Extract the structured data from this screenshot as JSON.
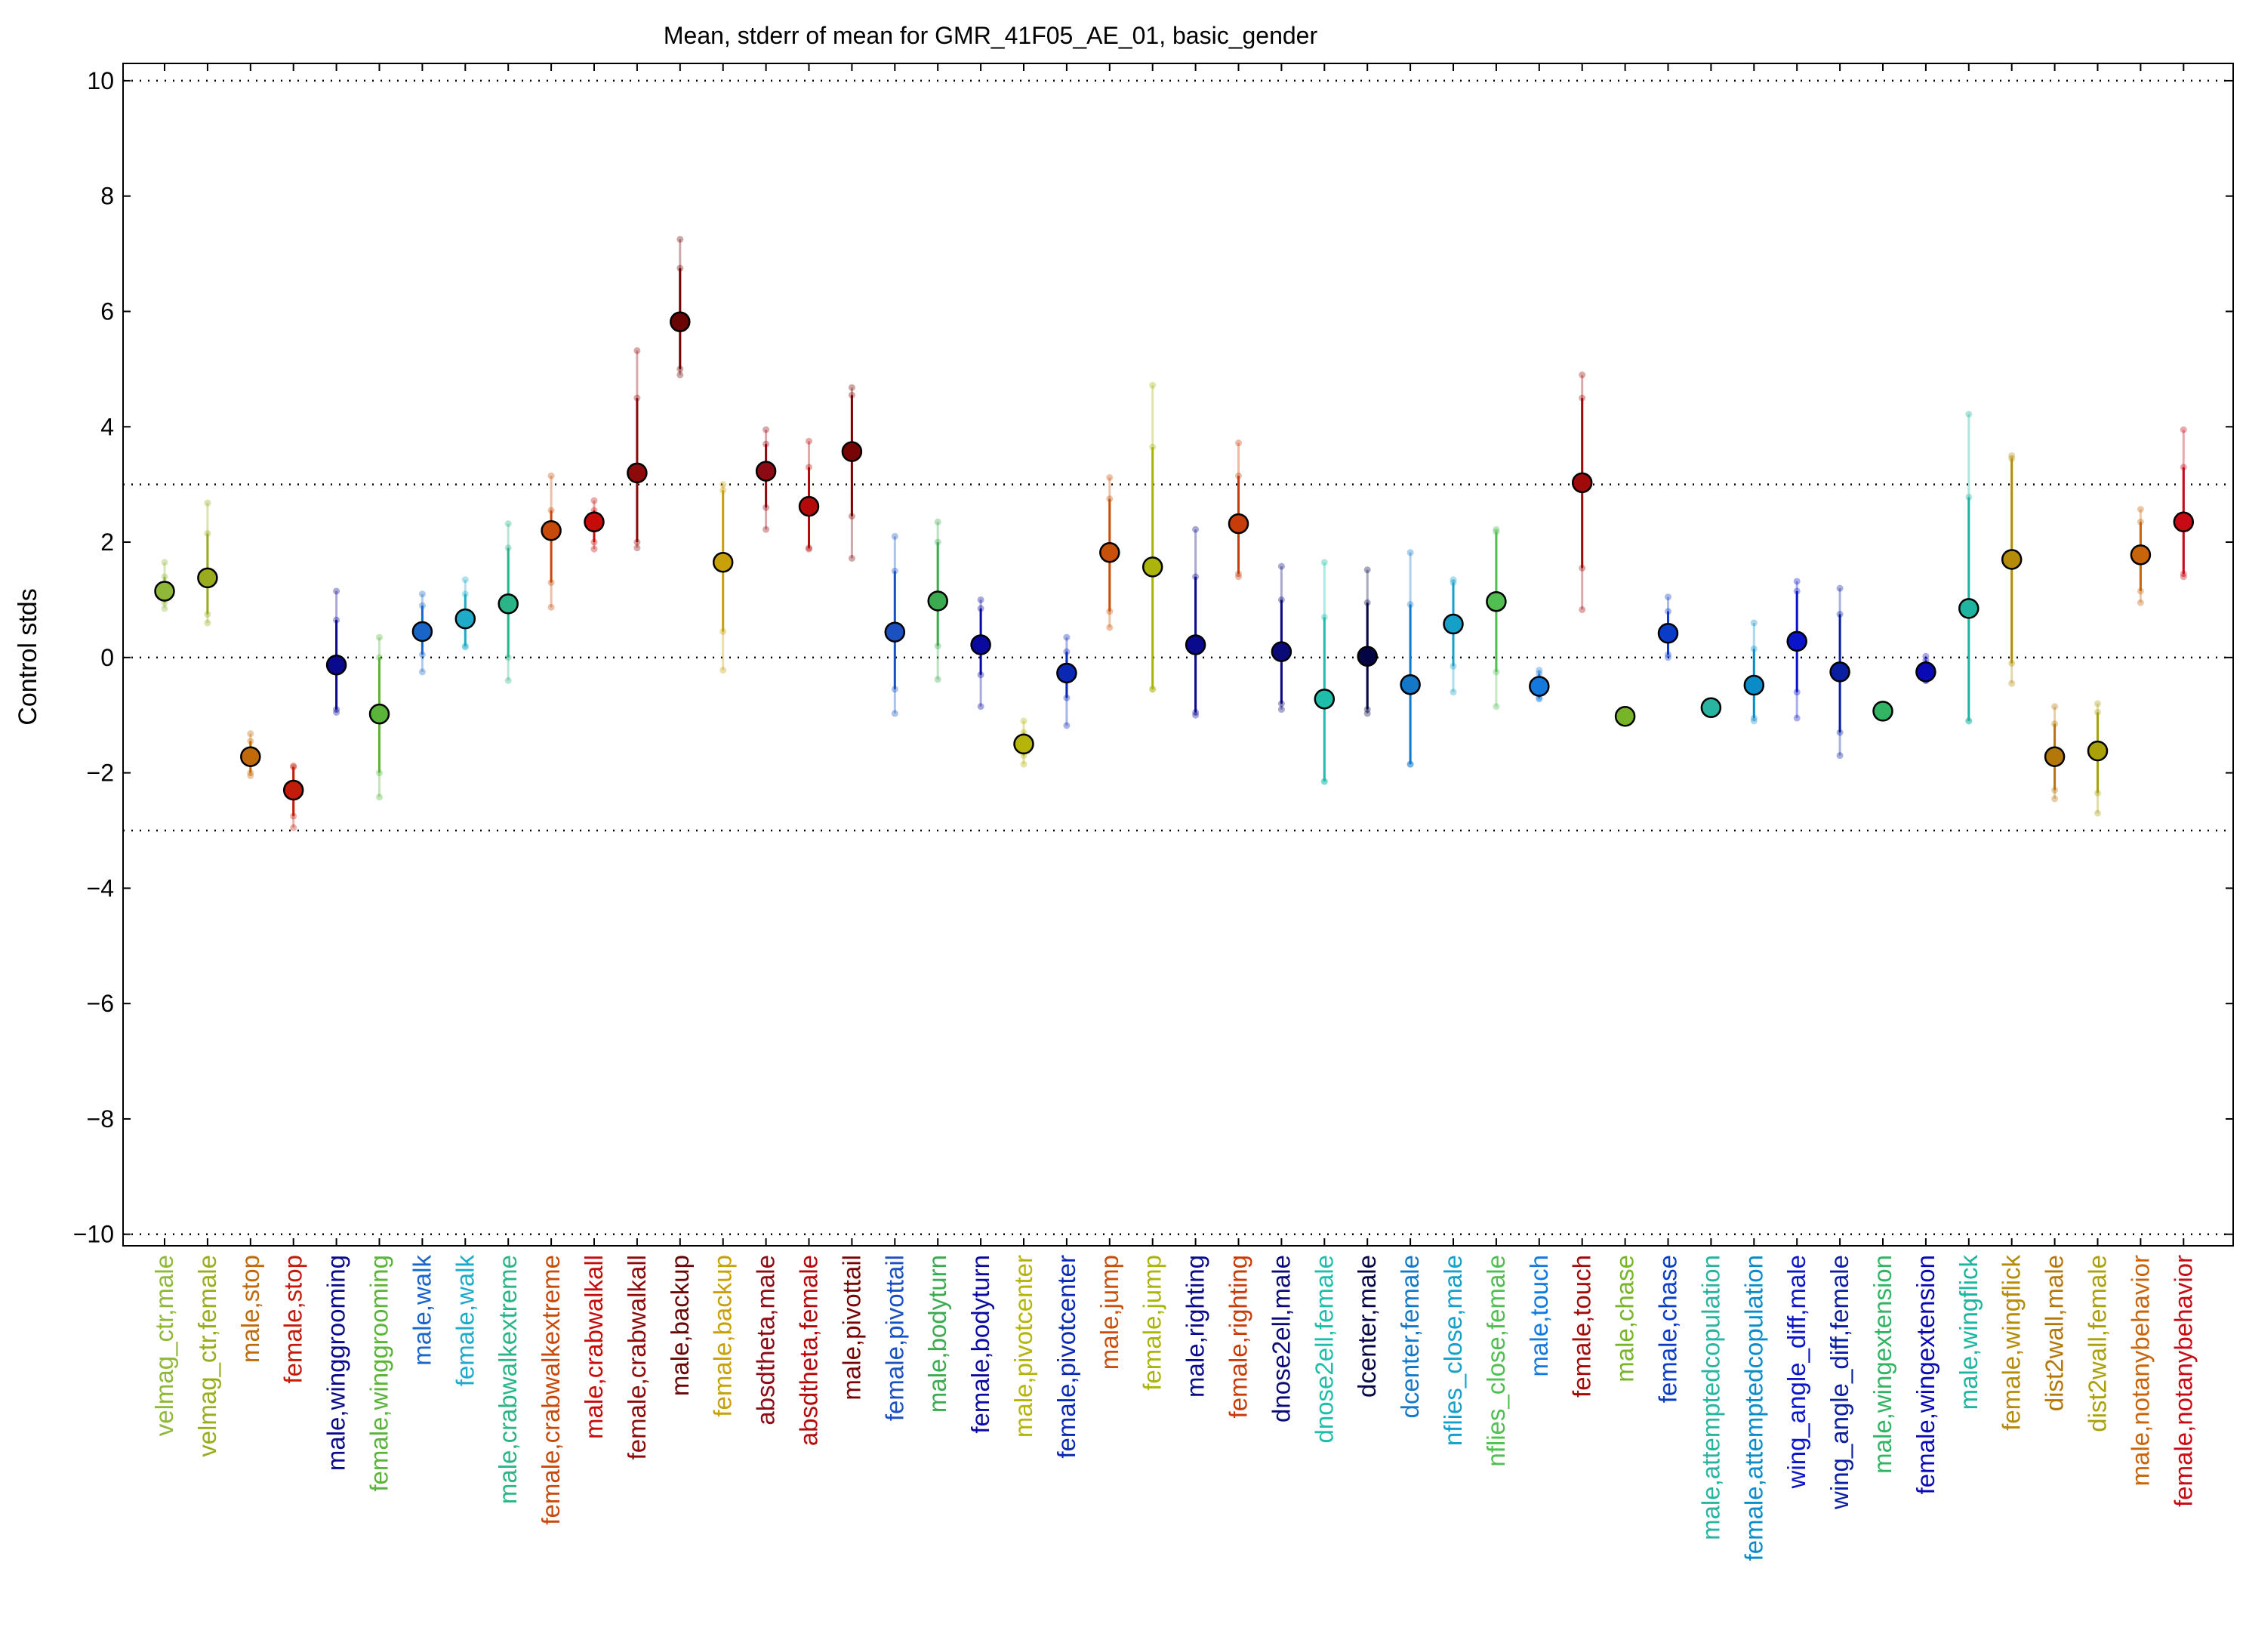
{
  "chart_data": {
    "type": "scatter",
    "title": "Mean, stderr of mean for GMR_41F05_AE_01, basic_gender",
    "xlabel": "",
    "ylabel": "Control stds",
    "ylim": [
      -10.2,
      10.3
    ],
    "yticks": [
      -10,
      -8,
      -6,
      -4,
      -2,
      0,
      2,
      4,
      6,
      8,
      10
    ],
    "ytick_labels": [
      "−10",
      "−8",
      "−6",
      "−4",
      "−2",
      "0",
      "2",
      "4",
      "6",
      "8",
      "10"
    ],
    "reference_lines": [
      10,
      3,
      0,
      -3,
      -10
    ],
    "grid": false,
    "points": [
      {
        "label": "velmag_ctr,male",
        "mean": 1.15,
        "se_low": 0.95,
        "se_high": 1.4,
        "low": 0.85,
        "high": 1.65,
        "color": "#8fb838"
      },
      {
        "label": "velmag_ctr,female",
        "mean": 1.38,
        "se_low": 0.75,
        "se_high": 2.15,
        "low": 0.6,
        "high": 2.68,
        "color": "#9aac1e"
      },
      {
        "label": "male,stop",
        "mean": -1.72,
        "se_low": -2.0,
        "se_high": -1.45,
        "low": -2.05,
        "high": -1.32,
        "color": "#c06a0a"
      },
      {
        "label": "female,stop",
        "mean": -2.3,
        "se_low": -2.75,
        "se_high": -1.9,
        "low": -2.95,
        "high": -1.88,
        "color": "#c41c0a"
      },
      {
        "label": "male,winggrooming",
        "mean": -0.13,
        "se_low": -0.9,
        "se_high": 0.65,
        "low": -0.95,
        "high": 1.15,
        "color": "#0a0a8c"
      },
      {
        "label": "female,winggrooming",
        "mean": -0.98,
        "se_low": -2.0,
        "se_high": 0.0,
        "low": -2.42,
        "high": 0.35,
        "color": "#5ab43a"
      },
      {
        "label": "male,walk",
        "mean": 0.45,
        "se_low": 0.05,
        "se_high": 0.9,
        "low": -0.25,
        "high": 1.1,
        "color": "#1a66c8"
      },
      {
        "label": "female,walk",
        "mean": 0.67,
        "se_low": 0.2,
        "se_high": 1.1,
        "low": 0.18,
        "high": 1.35,
        "color": "#1eaac8"
      },
      {
        "label": "male,crabwalkextreme",
        "mean": 0.93,
        "se_low": 0.0,
        "se_high": 1.9,
        "low": -0.4,
        "high": 2.32,
        "color": "#2ab488"
      },
      {
        "label": "female,crabwalkextreme",
        "mean": 2.2,
        "se_low": 1.3,
        "se_high": 2.55,
        "low": 0.87,
        "high": 3.15,
        "color": "#c84a0a"
      },
      {
        "label": "male,crabwalkall",
        "mean": 2.35,
        "se_low": 2.0,
        "se_high": 2.55,
        "low": 1.88,
        "high": 2.72,
        "color": "#c80a0a"
      },
      {
        "label": "female,crabwalkall",
        "mean": 3.2,
        "se_low": 2.0,
        "se_high": 4.5,
        "low": 1.9,
        "high": 5.32,
        "color": "#8c0a0a"
      },
      {
        "label": "male,backup",
        "mean": 5.82,
        "se_low": 5.0,
        "se_high": 6.75,
        "low": 4.9,
        "high": 7.25,
        "color": "#6a0505"
      },
      {
        "label": "female,backup",
        "mean": 1.65,
        "se_low": 0.45,
        "se_high": 2.9,
        "low": -0.22,
        "high": 3.0,
        "color": "#c8a00a"
      },
      {
        "label": "absdtheta,male",
        "mean": 3.23,
        "se_low": 2.6,
        "se_high": 3.7,
        "low": 2.22,
        "high": 3.95,
        "color": "#8c0a14"
      },
      {
        "label": "absdtheta,female",
        "mean": 2.62,
        "se_low": 1.9,
        "se_high": 3.3,
        "low": 1.88,
        "high": 3.75,
        "color": "#b40a0a"
      },
      {
        "label": "male,pivottail",
        "mean": 3.57,
        "se_low": 2.45,
        "se_high": 4.55,
        "low": 1.72,
        "high": 4.68,
        "color": "#780505"
      },
      {
        "label": "female,pivottail",
        "mean": 0.44,
        "se_low": -0.55,
        "se_high": 1.5,
        "low": -0.97,
        "high": 2.1,
        "color": "#1a50c0"
      },
      {
        "label": "male,bodyturn",
        "mean": 0.98,
        "se_low": 0.2,
        "se_high": 2.0,
        "low": -0.38,
        "high": 2.35,
        "color": "#3caa50"
      },
      {
        "label": "female,bodyturn",
        "mean": 0.22,
        "se_low": -0.3,
        "se_high": 0.85,
        "low": -0.85,
        "high": 1.0,
        "color": "#0a0aa0"
      },
      {
        "label": "male,pivotcenter",
        "mean": -1.5,
        "se_low": -1.7,
        "se_high": -1.3,
        "low": -1.85,
        "high": -1.1,
        "color": "#b4b40a"
      },
      {
        "label": "female,pivotcenter",
        "mean": -0.27,
        "se_low": -0.7,
        "se_high": 0.1,
        "low": -1.18,
        "high": 0.35,
        "color": "#0a28b4"
      },
      {
        "label": "male,jump",
        "mean": 1.82,
        "se_low": 0.8,
        "se_high": 2.75,
        "low": 0.52,
        "high": 3.12,
        "color": "#c8500a"
      },
      {
        "label": "female,jump",
        "mean": 1.57,
        "se_low": -0.55,
        "se_high": 3.65,
        "low": -0.55,
        "high": 4.72,
        "color": "#aab40a"
      },
      {
        "label": "male,righting",
        "mean": 0.22,
        "se_low": -0.95,
        "se_high": 1.4,
        "low": -1.0,
        "high": 2.22,
        "color": "#0a0a8c"
      },
      {
        "label": "female,righting",
        "mean": 2.32,
        "se_low": 1.45,
        "se_high": 3.15,
        "low": 1.4,
        "high": 3.72,
        "color": "#c83c0a"
      },
      {
        "label": "dnose2ell,male",
        "mean": 0.1,
        "se_low": -0.8,
        "se_high": 1.0,
        "low": -0.9,
        "high": 1.58,
        "color": "#0a0a78"
      },
      {
        "label": "dnose2ell,female",
        "mean": -0.72,
        "se_low": -2.15,
        "se_high": 0.7,
        "low": -2.15,
        "high": 1.65,
        "color": "#1ebeaa"
      },
      {
        "label": "dcenter,male",
        "mean": 0.02,
        "se_low": -0.9,
        "se_high": 0.95,
        "low": -0.97,
        "high": 1.52,
        "color": "#050546"
      },
      {
        "label": "dcenter,female",
        "mean": -0.47,
        "se_low": -1.85,
        "se_high": 0.92,
        "low": -1.85,
        "high": 1.82,
        "color": "#1478c8"
      },
      {
        "label": "nflies_close,male",
        "mean": 0.58,
        "se_low": -0.15,
        "se_high": 1.3,
        "low": -0.6,
        "high": 1.35,
        "color": "#14a0c8"
      },
      {
        "label": "nflies_close,female",
        "mean": 0.97,
        "se_low": -0.25,
        "se_high": 2.18,
        "low": -0.85,
        "high": 2.22,
        "color": "#50be50"
      },
      {
        "label": "male,touch",
        "mean": -0.5,
        "se_low": -0.7,
        "se_high": -0.28,
        "low": -0.72,
        "high": -0.22,
        "color": "#1478dc"
      },
      {
        "label": "female,touch",
        "mean": 3.03,
        "se_low": 1.55,
        "se_high": 4.5,
        "low": 0.83,
        "high": 4.9,
        "color": "#a00a0a"
      },
      {
        "label": "male,chase",
        "mean": -1.02,
        "se_low": -1.02,
        "se_high": -1.02,
        "low": -1.02,
        "high": -1.02,
        "color": "#78b428"
      },
      {
        "label": "female,chase",
        "mean": 0.42,
        "se_low": 0.05,
        "se_high": 0.8,
        "low": 0.0,
        "high": 1.05,
        "color": "#0a3cc8"
      },
      {
        "label": "male,attemptedcopulation",
        "mean": -0.87,
        "se_low": -0.87,
        "se_high": -0.87,
        "low": -0.87,
        "high": -0.87,
        "color": "#28b4a0"
      },
      {
        "label": "female,attemptedcopulation",
        "mean": -0.48,
        "se_low": -1.05,
        "se_high": 0.15,
        "low": -1.1,
        "high": 0.6,
        "color": "#0a8cc8"
      },
      {
        "label": "wing_angle_diff,male",
        "mean": 0.28,
        "se_low": -0.6,
        "se_high": 1.15,
        "low": -1.05,
        "high": 1.32,
        "color": "#0a14c8"
      },
      {
        "label": "wing_angle_diff,female",
        "mean": -0.25,
        "se_low": -1.3,
        "se_high": 0.75,
        "low": -1.7,
        "high": 1.2,
        "color": "#0a1ea0"
      },
      {
        "label": "male,wingextension",
        "mean": -0.93,
        "se_low": -0.93,
        "se_high": -0.93,
        "low": -0.93,
        "high": -0.93,
        "color": "#32b464"
      },
      {
        "label": "female,wingextension",
        "mean": -0.25,
        "se_low": -0.4,
        "se_high": -0.05,
        "low": -0.4,
        "high": 0.02,
        "color": "#0a0ab4"
      },
      {
        "label": "male,wingflick",
        "mean": 0.85,
        "se_low": -1.1,
        "se_high": 2.78,
        "low": -1.1,
        "high": 4.22,
        "color": "#1eb4a0"
      },
      {
        "label": "female,wingflick",
        "mean": 1.7,
        "se_low": -0.1,
        "se_high": 3.45,
        "low": -0.45,
        "high": 3.5,
        "color": "#b48c0a"
      },
      {
        "label": "dist2wall,male",
        "mean": -1.72,
        "se_low": -2.3,
        "se_high": -1.15,
        "low": -2.45,
        "high": -0.85,
        "color": "#b4780a"
      },
      {
        "label": "dist2wall,female",
        "mean": -1.62,
        "se_low": -2.35,
        "se_high": -0.95,
        "low": -2.7,
        "high": -0.8,
        "color": "#aaa00a"
      },
      {
        "label": "male,notanybehavior",
        "mean": 1.78,
        "se_low": 1.15,
        "se_high": 2.35,
        "low": 0.95,
        "high": 2.57,
        "color": "#c8640a"
      },
      {
        "label": "female,notanybehavior",
        "mean": 2.35,
        "se_low": 1.45,
        "se_high": 3.3,
        "low": 1.4,
        "high": 3.95,
        "color": "#c80a14"
      }
    ]
  }
}
